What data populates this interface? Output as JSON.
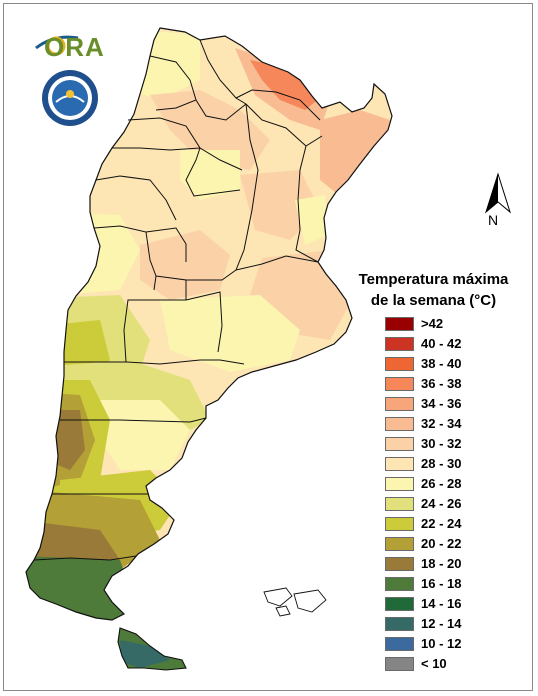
{
  "legend": {
    "title_line1": "Temperatura máxima",
    "title_line2": "de la semana (°C)",
    "items": [
      {
        "label": ">42",
        "color": "#990000"
      },
      {
        "label": "40 - 42",
        "color": "#cc3322"
      },
      {
        "label": "38 - 40",
        "color": "#ee6633"
      },
      {
        "label": "36 - 38",
        "color": "#f5875a"
      },
      {
        "label": "34 - 36",
        "color": "#f7a57a"
      },
      {
        "label": "32 - 34",
        "color": "#f9bb92"
      },
      {
        "label": "30 - 32",
        "color": "#fbd2a8"
      },
      {
        "label": "28 - 30",
        "color": "#fde5b4"
      },
      {
        "label": "26 - 28",
        "color": "#fbf5b0"
      },
      {
        "label": "24 - 26",
        "color": "#e2e07a"
      },
      {
        "label": "22 - 24",
        "color": "#cccb3a"
      },
      {
        "label": "20 - 22",
        "color": "#b3a036"
      },
      {
        "label": "18 - 20",
        "color": "#997a38"
      },
      {
        "label": "16 - 18",
        "color": "#4e7a3a"
      },
      {
        "label": "14 - 16",
        "color": "#1f6a38"
      },
      {
        "label": "12 - 14",
        "color": "#366a66"
      },
      {
        "label": "10 - 12",
        "color": "#3d6a9e"
      },
      {
        "label": "< 10",
        "color": "#858585"
      }
    ]
  },
  "logo": {
    "text": "ORA"
  },
  "north_arrow": {
    "label": "N"
  }
}
